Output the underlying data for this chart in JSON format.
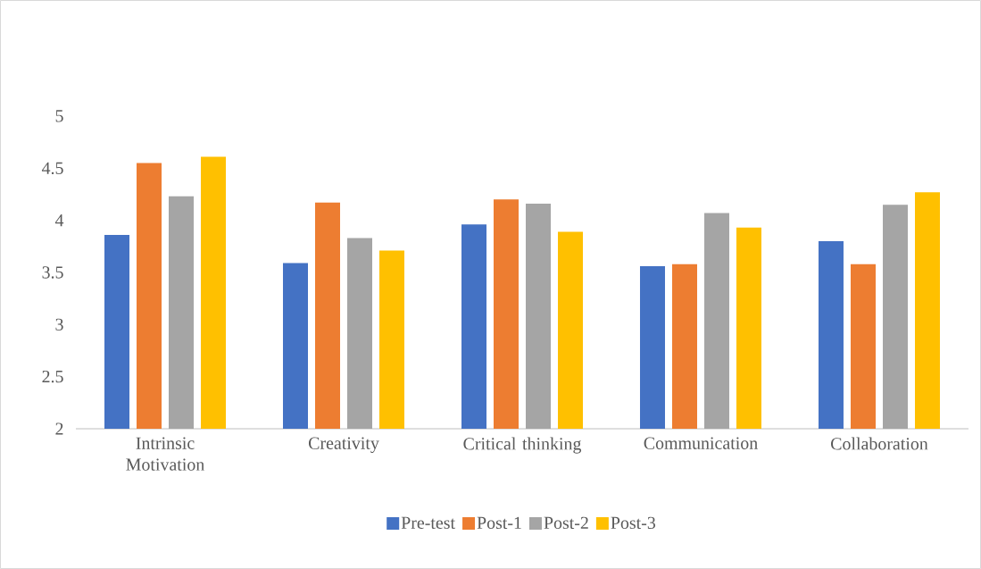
{
  "chart_data": {
    "type": "bar",
    "categories": [
      "Intrinsic Motivation",
      "Creativity",
      "Critical thinking",
      "Communication",
      "Collaboration"
    ],
    "series": [
      {
        "name": "Pre-test",
        "color": "#4472c4",
        "values": [
          3.86,
          3.59,
          3.96,
          3.56,
          3.8
        ]
      },
      {
        "name": "Post-1",
        "color": "#ed7d31",
        "values": [
          4.55,
          4.17,
          4.2,
          3.58,
          3.58
        ]
      },
      {
        "name": "Post-2",
        "color": "#a5a5a5",
        "values": [
          4.23,
          3.83,
          4.16,
          4.07,
          4.15
        ]
      },
      {
        "name": "Post-3",
        "color": "#ffc000",
        "values": [
          4.61,
          3.71,
          3.89,
          3.93,
          4.27
        ]
      }
    ],
    "ylim": [
      2,
      5
    ],
    "yticks": [
      2,
      2.5,
      3,
      3.5,
      4,
      4.5,
      5
    ],
    "legend": "bottom"
  }
}
